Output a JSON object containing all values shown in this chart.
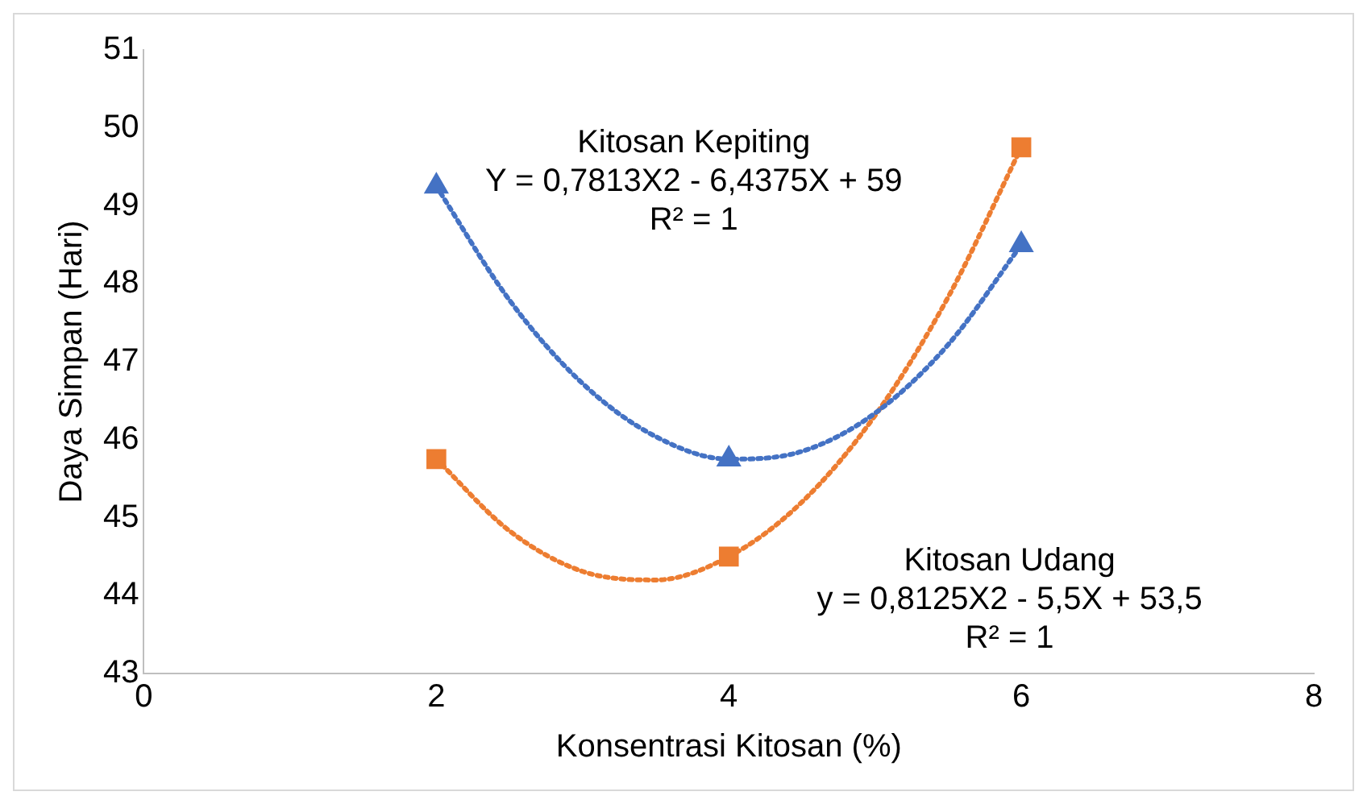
{
  "chart_data": {
    "type": "scatter",
    "xlabel": "Konsentrasi Kitosan (%)",
    "ylabel": "Daya Simpan (Hari)",
    "xlim": [
      0,
      8
    ],
    "xticks": [
      0,
      2,
      4,
      6,
      8
    ],
    "ylim": [
      43,
      51
    ],
    "yticks": [
      43,
      44,
      45,
      46,
      47,
      48,
      49,
      50,
      51
    ],
    "grid": false,
    "legend": false,
    "series": [
      {
        "color": "#4472c4",
        "marker": "triangle",
        "x": [
          2,
          4,
          6
        ],
        "values": [
          49.25,
          45.75,
          48.5
        ]
      },
      {
        "color": "#ed7d31",
        "marker": "square",
        "x": [
          2,
          4,
          6
        ],
        "values": [
          45.75,
          44.5,
          49.75
        ]
      },
      {
        "type": "line",
        "color": "#4472c4",
        "line_style": "dotted",
        "marker": "none",
        "x": [
          2,
          2.5,
          3,
          3.5,
          4,
          4.5,
          5,
          5.5,
          6
        ],
        "values": [
          49.25,
          47.79,
          46.72,
          46.04,
          45.75,
          45.85,
          46.34,
          47.22,
          48.5
        ]
      },
      {
        "type": "line",
        "color": "#ed7d31",
        "line_style": "dotted",
        "marker": "none",
        "x": [
          2,
          2.5,
          3,
          3.5,
          4,
          4.5,
          5,
          5.5,
          6
        ],
        "values": [
          45.75,
          44.83,
          44.31,
          44.2,
          44.5,
          45.2,
          46.31,
          47.83,
          49.75
        ]
      }
    ],
    "annotations": [
      "Kitosan Kepiting\nY = 0,7813X2 - 6,4375X + 59\nR² = 1",
      "Kitosan Udang\ny = 0,8125X2 - 5,5X + 53,5\nR² = 1"
    ]
  }
}
